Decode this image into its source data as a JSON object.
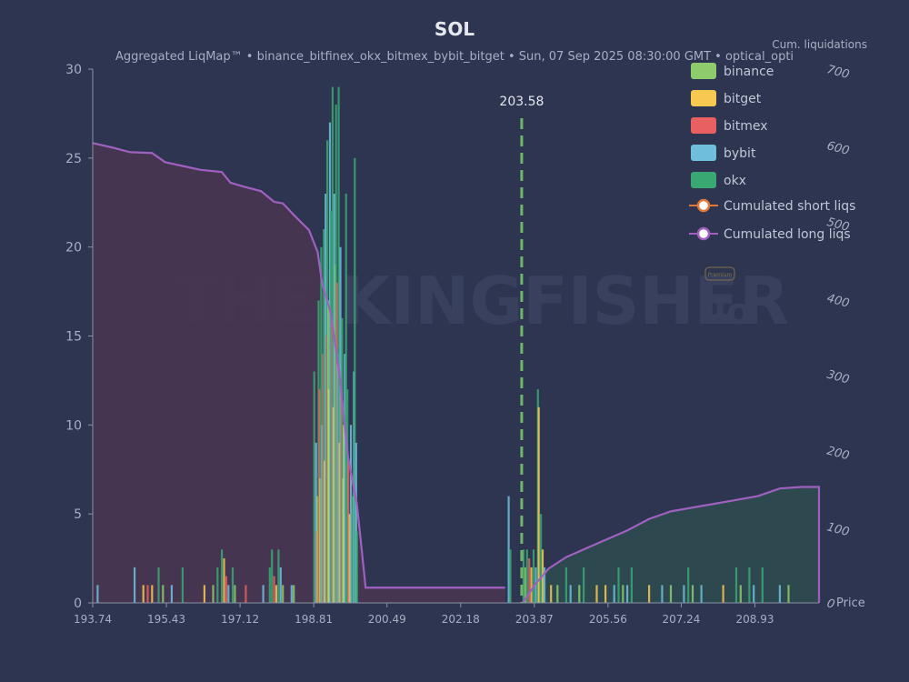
{
  "chart_data": {
    "type": "bar",
    "title": "SOL",
    "subtitle": "Aggregated LiqMap™  •  binance_bitfinex_okx_bitmex_bybit_bitget  •  Sun, 07 Sep 2025 08:30:00 GMT  •  optical_opti",
    "right_axis_title": "Cum. liquidations",
    "x_axis_label": "Price",
    "xlim": [
      193.74,
      210.4
    ],
    "x_ticks": [
      "193.74",
      "195.43",
      "197.12",
      "198.81",
      "200.49",
      "202.18",
      "203.87",
      "205.56",
      "207.24",
      "208.93"
    ],
    "ylim": [
      0,
      30
    ],
    "y_ticks": [
      "0",
      "5",
      "10",
      "15",
      "20",
      "25",
      "30"
    ],
    "y2lim": [
      0,
      700
    ],
    "y2_ticks": [
      "0",
      "100",
      "200",
      "300",
      "400",
      "500",
      "600",
      "700"
    ],
    "current_price": {
      "value": 203.58,
      "label": "203.58"
    },
    "series": [
      {
        "name": "binance",
        "color": "#8ecb6d"
      },
      {
        "name": "bitget",
        "color": "#f7c950"
      },
      {
        "name": "bitmex",
        "color": "#e8605f"
      },
      {
        "name": "bybit",
        "color": "#6fbfdc"
      },
      {
        "name": "okx",
        "color": "#3aa873"
      }
    ],
    "bars": [
      [
        193.85,
        1.0,
        "bybit"
      ],
      [
        194.7,
        2.0,
        "bybit"
      ],
      [
        194.9,
        1.0,
        "bitget"
      ],
      [
        195.0,
        1.0,
        "bitmex"
      ],
      [
        195.1,
        1.0,
        "bitget"
      ],
      [
        195.25,
        2.0,
        "okx"
      ],
      [
        195.35,
        1.0,
        "binance"
      ],
      [
        195.55,
        1.0,
        "bybit"
      ],
      [
        195.8,
        2.0,
        "okx"
      ],
      [
        196.3,
        1.0,
        "bitget"
      ],
      [
        196.5,
        1.0,
        "binance"
      ],
      [
        196.6,
        2.0,
        "okx"
      ],
      [
        196.7,
        3.0,
        "okx"
      ],
      [
        196.75,
        2.5,
        "bitget"
      ],
      [
        196.8,
        1.5,
        "bitmex"
      ],
      [
        196.85,
        1.0,
        "bybit"
      ],
      [
        196.95,
        2.0,
        "okx"
      ],
      [
        197.0,
        1.0,
        "binance"
      ],
      [
        197.25,
        1.0,
        "bitmex"
      ],
      [
        197.65,
        1.0,
        "bybit"
      ],
      [
        197.8,
        2.0,
        "okx"
      ],
      [
        197.85,
        3.0,
        "okx"
      ],
      [
        197.9,
        1.5,
        "bitmex"
      ],
      [
        197.95,
        1.0,
        "bitget"
      ],
      [
        198.0,
        3.0,
        "okx"
      ],
      [
        198.05,
        2.0,
        "bybit"
      ],
      [
        198.1,
        1.0,
        "binance"
      ],
      [
        198.3,
        1.0,
        "bybit"
      ],
      [
        198.35,
        1.0,
        "binance"
      ],
      [
        198.82,
        13.0,
        "okx"
      ],
      [
        198.86,
        9.0,
        "bybit"
      ],
      [
        198.88,
        4.0,
        "bitmex"
      ],
      [
        198.9,
        6.0,
        "bitget"
      ],
      [
        198.92,
        17.0,
        "okx"
      ],
      [
        198.94,
        12.0,
        "bitmex"
      ],
      [
        198.96,
        7.0,
        "bitget"
      ],
      [
        198.98,
        20.0,
        "okx"
      ],
      [
        199.0,
        10.0,
        "bybit"
      ],
      [
        199.02,
        14.0,
        "bitmex"
      ],
      [
        199.04,
        21.0,
        "okx"
      ],
      [
        199.06,
        8.0,
        "bitget"
      ],
      [
        199.08,
        23.0,
        "bybit"
      ],
      [
        199.1,
        15.0,
        "bitmex"
      ],
      [
        199.12,
        26.0,
        "okx"
      ],
      [
        199.14,
        17.0,
        "binance"
      ],
      [
        199.16,
        12.0,
        "bitget"
      ],
      [
        199.18,
        27.0,
        "bybit"
      ],
      [
        199.2,
        22.0,
        "okx"
      ],
      [
        199.22,
        16.0,
        "bitmex"
      ],
      [
        199.24,
        29.0,
        "okx"
      ],
      [
        199.26,
        11.0,
        "bitget"
      ],
      [
        199.28,
        23.0,
        "bybit"
      ],
      [
        199.3,
        19.0,
        "binance"
      ],
      [
        199.32,
        28.0,
        "okx"
      ],
      [
        199.34,
        18.0,
        "bitmex"
      ],
      [
        199.36,
        14.0,
        "bybit"
      ],
      [
        199.38,
        29.0,
        "okx"
      ],
      [
        199.4,
        9.0,
        "bitget"
      ],
      [
        199.42,
        20.0,
        "bybit"
      ],
      [
        199.44,
        12.0,
        "bitmex"
      ],
      [
        199.46,
        16.0,
        "okx"
      ],
      [
        199.48,
        7.0,
        "binance"
      ],
      [
        199.5,
        10.0,
        "bitget"
      ],
      [
        199.52,
        14.0,
        "bybit"
      ],
      [
        199.55,
        23.0,
        "okx"
      ],
      [
        199.58,
        12.0,
        "okx"
      ],
      [
        199.6,
        8.0,
        "bitmex"
      ],
      [
        199.63,
        5.0,
        "bitget"
      ],
      [
        199.66,
        10.0,
        "bybit"
      ],
      [
        199.7,
        6.0,
        "okx"
      ],
      [
        199.73,
        13.0,
        "bybit"
      ],
      [
        199.75,
        25.0,
        "okx"
      ],
      [
        199.78,
        9.0,
        "bybit"
      ],
      [
        199.8,
        4.0,
        "okx"
      ],
      [
        203.28,
        6.0,
        "bybit"
      ],
      [
        203.32,
        3.0,
        "okx"
      ],
      [
        203.62,
        3.0,
        "okx"
      ],
      [
        203.66,
        2.0,
        "binance"
      ],
      [
        203.7,
        3.0,
        "okx"
      ],
      [
        203.75,
        2.5,
        "bitmex"
      ],
      [
        203.8,
        2.0,
        "bitget"
      ],
      [
        203.85,
        3.0,
        "okx"
      ],
      [
        203.9,
        2.0,
        "bybit"
      ],
      [
        203.95,
        12.0,
        "okx"
      ],
      [
        203.97,
        11.0,
        "bitget"
      ],
      [
        204.02,
        5.0,
        "okx"
      ],
      [
        204.06,
        3.0,
        "bitget"
      ],
      [
        204.1,
        2.0,
        "bybit"
      ],
      [
        204.25,
        1.0,
        "bitget"
      ],
      [
        204.4,
        1.0,
        "binance"
      ],
      [
        204.6,
        2.0,
        "okx"
      ],
      [
        204.7,
        1.0,
        "bybit"
      ],
      [
        204.9,
        1.0,
        "binance"
      ],
      [
        205.0,
        2.0,
        "okx"
      ],
      [
        205.3,
        1.0,
        "bitget"
      ],
      [
        205.5,
        1.0,
        "bitget"
      ],
      [
        205.7,
        1.0,
        "bybit"
      ],
      [
        205.8,
        2.0,
        "okx"
      ],
      [
        205.9,
        1.0,
        "binance"
      ],
      [
        206.0,
        1.0,
        "bybit"
      ],
      [
        206.1,
        2.0,
        "okx"
      ],
      [
        206.5,
        1.0,
        "bitget"
      ],
      [
        206.8,
        1.0,
        "bybit"
      ],
      [
        207.0,
        1.0,
        "binance"
      ],
      [
        207.3,
        1.0,
        "bybit"
      ],
      [
        207.4,
        2.0,
        "okx"
      ],
      [
        207.5,
        1.0,
        "binance"
      ],
      [
        207.7,
        1.0,
        "bybit"
      ],
      [
        208.2,
        1.0,
        "bitget"
      ],
      [
        208.5,
        2.0,
        "okx"
      ],
      [
        208.6,
        1.0,
        "binance"
      ],
      [
        208.8,
        2.0,
        "okx"
      ],
      [
        208.9,
        1.0,
        "bybit"
      ],
      [
        209.1,
        2.0,
        "okx"
      ],
      [
        209.5,
        1.0,
        "bybit"
      ],
      [
        209.7,
        1.0,
        "binance"
      ]
    ],
    "cum_long_liqs": {
      "x": [
        193.74,
        194.2,
        194.6,
        195.1,
        195.4,
        195.8,
        196.2,
        196.7,
        196.9,
        197.2,
        197.6,
        197.9,
        198.1,
        198.4,
        198.7,
        198.9,
        199.0,
        199.2,
        199.4,
        199.6,
        199.8,
        200.0,
        203.2
      ],
      "y": [
        603,
        597,
        591,
        590,
        578,
        573,
        568,
        565,
        551,
        546,
        540,
        526,
        524,
        506,
        489,
        460,
        420,
        380,
        300,
        190,
        130,
        20,
        20
      ]
    },
    "cum_short_liqs": {
      "x": [
        203.6,
        203.9,
        204.2,
        204.6,
        205.0,
        205.4,
        206.0,
        206.5,
        207.0,
        207.5,
        208.0,
        208.5,
        209.0,
        209.5,
        210.0,
        210.4
      ],
      "y": [
        0,
        25,
        45,
        60,
        70,
        80,
        95,
        110,
        120,
        125,
        130,
        135,
        140,
        150,
        152,
        152
      ]
    },
    "legend": {
      "position": "top-right",
      "items": [
        "binance",
        "bitget",
        "bitmex",
        "bybit",
        "okx",
        "Cumulated short liqs",
        "Cumulated long liqs"
      ]
    },
    "watermark": "THE KINGFISHER.io",
    "colors": {
      "background": "#2d3550",
      "long_fill": "#4a3550",
      "short_fill": "#2e4a4f",
      "cum_line": "#a060c0",
      "short_marker": "#e07a3a",
      "price_line": "#6fb56a"
    }
  }
}
